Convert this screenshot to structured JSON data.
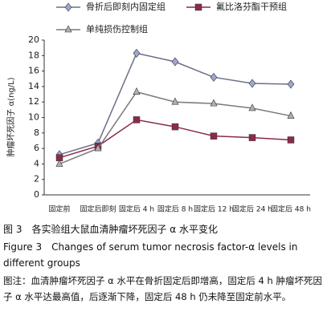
{
  "chart_data": {
    "type": "line",
    "ylabel": "肿瘤坏死因子 α(ng/L)",
    "categories": [
      "固定前",
      "固定后即刻",
      "固定后 4 h",
      "固定后 8 h",
      "固定后 12 h",
      "固定后 24 h",
      "固定后 48 h"
    ],
    "series": [
      {
        "name": "骨折后即刻内固定组",
        "color": "#6e6e8a",
        "marker": "diamond",
        "values": [
          5.2,
          6.7,
          18.3,
          17.2,
          15.2,
          14.4,
          14.3
        ]
      },
      {
        "name": "氟比洛芬酯干预组",
        "color": "#8b2a4a",
        "marker": "square",
        "values": [
          4.8,
          6.3,
          9.7,
          8.8,
          7.6,
          7.4,
          7.1
        ]
      },
      {
        "name": "单纯损伤控制组",
        "color": "#7a7a7a",
        "marker": "triangle",
        "values": [
          4.0,
          6.0,
          13.3,
          12.0,
          11.8,
          11.2,
          10.2
        ]
      }
    ],
    "ylim": [
      0,
      20
    ],
    "yticks": [
      0,
      2,
      4,
      6,
      8,
      10,
      12,
      14,
      16,
      18,
      20
    ]
  },
  "caption": {
    "title_cn": "图 3　各实验组大鼠血清肿瘤坏死因子 α 水平变化",
    "title_en": "Figure 3　Changes of serum tumor necrosis factor-α levels in different groups",
    "note": "图注：血清肿瘤坏死因子 α 水平在骨折固定后即增高，固定后 4 h 肿瘤坏死因子 α 水平达最高值，后逐渐下降，固定后 48 h 仍未降至固定前水平。"
  }
}
